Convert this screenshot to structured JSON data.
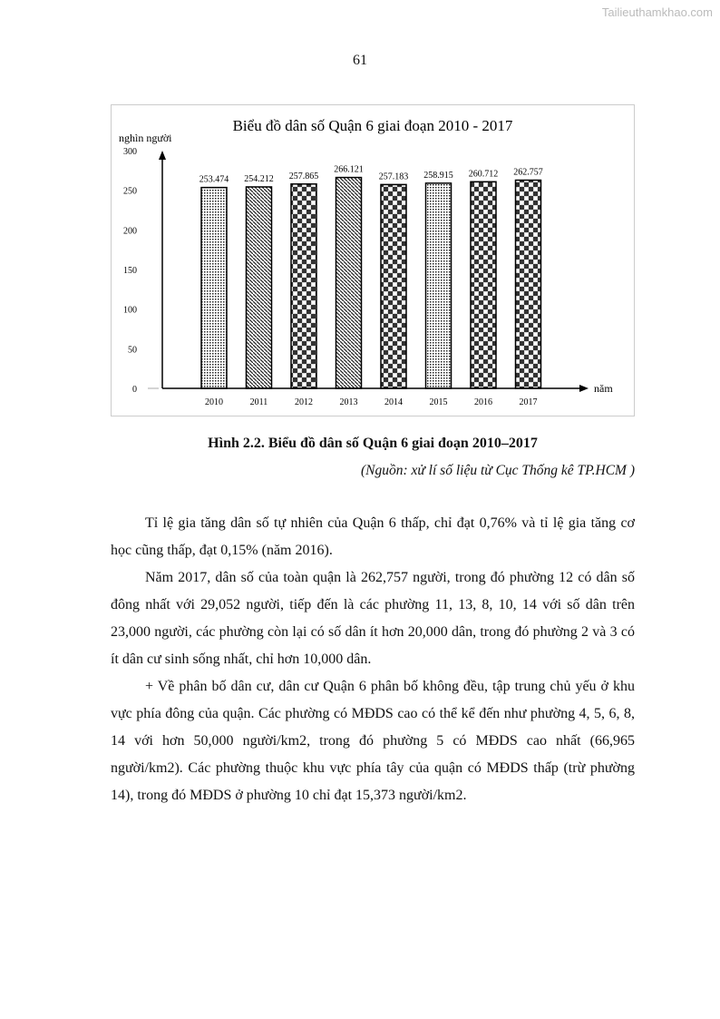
{
  "watermark": "Tailieuthamkhao.com",
  "page_number": "61",
  "chart_data": {
    "type": "bar",
    "title": "Biểu đồ dân số Quận 6 giai đoạn 2010 - 2017",
    "ylabel": "nghìn người",
    "xlabel": "năm",
    "ylim": [
      0,
      300
    ],
    "yticks": [
      "0",
      "50",
      "100",
      "150",
      "200",
      "250",
      "300"
    ],
    "categories": [
      "2010",
      "2011",
      "2012",
      "2013",
      "2014",
      "2015",
      "2016",
      "2017"
    ],
    "values": [
      253.474,
      254.212,
      257.865,
      266.121,
      257.183,
      258.915,
      260.712,
      262.757
    ],
    "labels": [
      "253.474",
      "254.212",
      "257.865",
      "266.121",
      "257.183",
      "258.915",
      "260.712",
      "262.757"
    ],
    "patterns": [
      "dots",
      "diag",
      "checker",
      "diag",
      "checker",
      "dots",
      "checker",
      "checker"
    ],
    "grid": false
  },
  "caption": "Hình 2.2. Biểu đồ dân số Quận 6 giai đoạn 2010–2017",
  "source": "(Nguồn: xử lí số liệu từ Cục Thống kê TP.HCM )",
  "paragraphs": [
    "Tỉ lệ gia tăng dân số tự nhiên của Quận 6 thấp, chỉ đạt 0,76% và tỉ lệ gia tăng cơ học cũng thấp, đạt 0,15% (năm 2016).",
    "Năm 2017, dân số của toàn quận là 262,757 người, trong đó phường 12 có dân số đông nhất với 29,052 người, tiếp đến là các phường 11, 13, 8, 10, 14 với số dân trên 23,000 người, các phường còn lại có số dân ít hơn 20,000 dân, trong đó phường 2 và 3 có ít dân cư sinh sống nhất, chỉ hơn 10,000 dân.",
    "+ Về phân bố dân cư, dân cư Quận 6 phân bố không đều, tập trung chủ yếu ở khu vực phía đông của quận. Các phường có MĐDS cao có thể kể đến như phường 4, 5, 6, 8, 14 với hơn 50,000 người/km2, trong đó phường 5 có MĐDS cao nhất (66,965 người/km2). Các phường thuộc khu vực phía tây của quận có MĐDS thấp (trừ phường 14), trong đó MĐDS ở phường 10 chỉ đạt 15,373 người/km2."
  ]
}
